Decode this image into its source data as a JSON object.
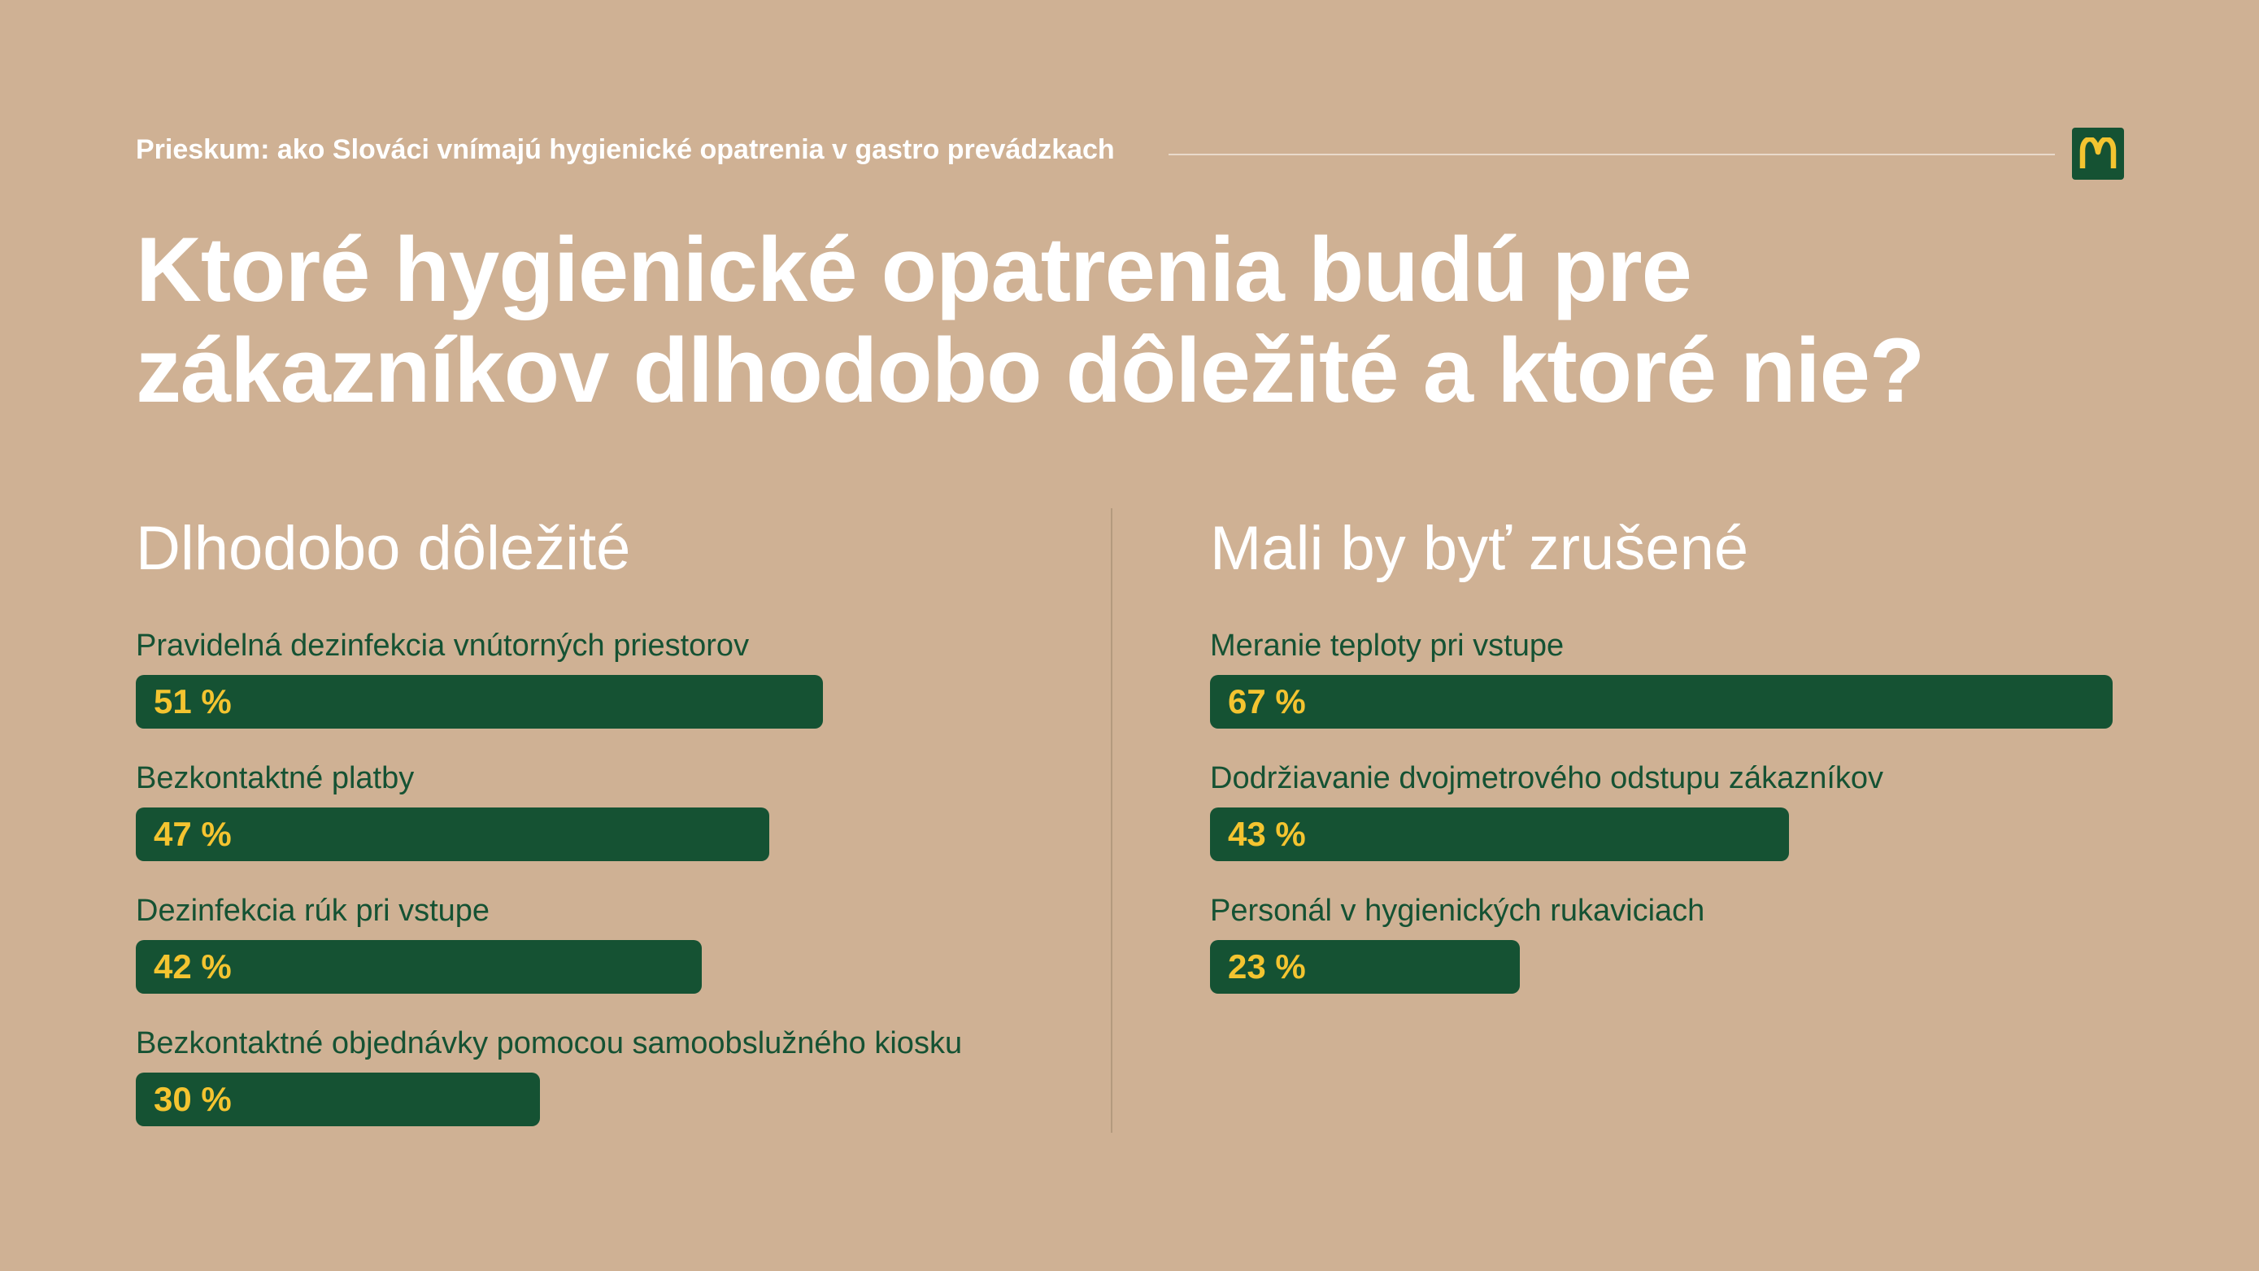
{
  "header": {
    "subtitle": "Prieskum: ako Slováci vnímajú hygienické opatrenia v gastro prevádzkach",
    "logo_icon": "mcdonalds-logo-icon"
  },
  "title": "Ktoré hygienické opatrenia budú pre zákazníkov dlhodobo dôležité a ktoré nie?",
  "colors": {
    "background": "#CFB194",
    "bar": "#155233",
    "value_text": "#F4C430",
    "label_text": "#155233",
    "title_text": "#FFFFFF"
  },
  "chart_data": [
    {
      "type": "bar",
      "orientation": "horizontal",
      "title": "Dlhodobo dôležité",
      "unit": "%",
      "xlim": [
        0,
        67
      ],
      "categories": [
        "Pravidelná dezinfekcia vnútorných priestorov",
        "Bezkontaktné platby",
        "Dezinfekcia rúk pri vstupe",
        "Bezkontaktné objednávky pomocou samoobslužného kiosku"
      ],
      "values": [
        51,
        47,
        42,
        30
      ],
      "value_labels": [
        "51 %",
        "47 %",
        "42 %",
        "30 %"
      ]
    },
    {
      "type": "bar",
      "orientation": "horizontal",
      "title": "Mali by byť zrušené",
      "unit": "%",
      "xlim": [
        0,
        67
      ],
      "categories": [
        "Meranie teploty pri vstupe",
        "Dodržiavanie dvojmetrového odstupu zákazníkov",
        "Personál v hygienických rukaviciach"
      ],
      "values": [
        67,
        43,
        23
      ],
      "value_labels": [
        "67 %",
        "43 %",
        "23 %"
      ]
    }
  ]
}
